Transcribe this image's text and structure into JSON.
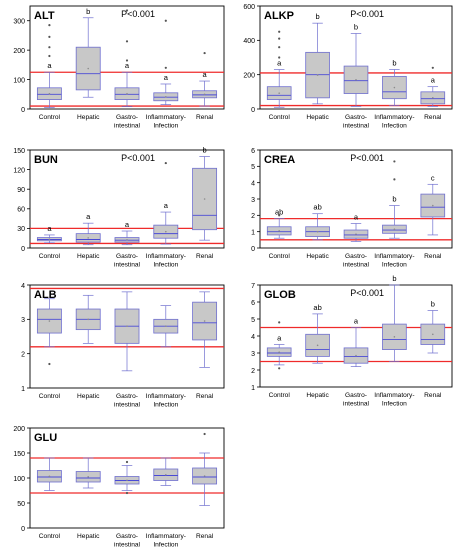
{
  "colors": {
    "box_fill": "#c8c8c8",
    "box_stroke": "#6f6fcf",
    "median": "#4a4ad6",
    "whisker": "#6f6fcf",
    "outlier": "#555555",
    "ref_line": "#ef2b2b",
    "frame": "#000000"
  },
  "categories": [
    "Control",
    "Hepatic",
    "Gastro-intestinal",
    "Inflammatory-Infection",
    "Renal"
  ],
  "category_lines": [
    [
      "Control"
    ],
    [
      "Hepatic"
    ],
    [
      "Gastro-",
      "intestinal"
    ],
    [
      "Inflammatory-",
      "Infection"
    ],
    [
      "Renal"
    ]
  ],
  "chart_data": [
    {
      "type": "box",
      "title": "ALT",
      "pvalue": "P<0.001",
      "ylim": [
        0,
        350
      ],
      "yticks": [
        "0",
        "100",
        "200",
        "300"
      ],
      "ytick_values": [
        0,
        100,
        200,
        300
      ],
      "ref_lines": [
        125,
        10
      ],
      "boxes": [
        {
          "min": 5,
          "q1": 32,
          "median": 50,
          "q3": 72,
          "max": 125,
          "outliers": [
            180,
            210,
            245,
            285
          ],
          "letter": "a"
        },
        {
          "min": 40,
          "q1": 65,
          "median": 120,
          "q3": 210,
          "max": 310,
          "outliers": [],
          "letter": "b"
        },
        {
          "min": 8,
          "q1": 32,
          "median": 50,
          "q3": 72,
          "max": 125,
          "outliers": [
            165,
            230,
            335
          ],
          "letter": "a"
        },
        {
          "min": 15,
          "q1": 28,
          "median": 40,
          "q3": 55,
          "max": 85,
          "outliers": [
            140,
            300
          ],
          "letter": "a"
        },
        {
          "min": 10,
          "q1": 38,
          "median": 48,
          "q3": 62,
          "max": 95,
          "outliers": [
            190
          ],
          "letter": "a"
        }
      ]
    },
    {
      "type": "box",
      "title": "ALKP",
      "pvalue": "P<0.001",
      "ylim": [
        0,
        600
      ],
      "yticks": [
        "0",
        "200",
        "400",
        "600"
      ],
      "ytick_values": [
        0,
        200,
        400,
        600
      ],
      "ref_lines": [
        210,
        20
      ],
      "boxes": [
        {
          "min": 10,
          "q1": 55,
          "median": 80,
          "q3": 130,
          "max": 230,
          "outliers": [
            300,
            360,
            410,
            450
          ],
          "letter": "a"
        },
        {
          "min": 30,
          "q1": 65,
          "median": 200,
          "q3": 330,
          "max": 500,
          "outliers": [],
          "letter": "b"
        },
        {
          "min": 15,
          "q1": 90,
          "median": 165,
          "q3": 250,
          "max": 440,
          "outliers": [],
          "letter": "b"
        },
        {
          "min": 20,
          "q1": 60,
          "median": 100,
          "q3": 190,
          "max": 230,
          "outliers": [],
          "letter": "b"
        },
        {
          "min": 15,
          "q1": 30,
          "median": 60,
          "q3": 100,
          "max": 130,
          "outliers": [
            240
          ],
          "letter": "a"
        }
      ]
    },
    {
      "type": "box",
      "title": "BUN",
      "pvalue": "P<0.001",
      "ylim": [
        0,
        150
      ],
      "yticks": [
        "0",
        "30",
        "60",
        "90",
        "120",
        "150"
      ],
      "ytick_values": [
        0,
        30,
        60,
        90,
        120,
        150
      ],
      "ref_lines": [
        30,
        7
      ],
      "boxes": [
        {
          "min": 8,
          "q1": 11,
          "median": 13,
          "q3": 16,
          "max": 20,
          "outliers": [],
          "letter": "a"
        },
        {
          "min": 5,
          "q1": 9,
          "median": 13,
          "q3": 22,
          "max": 38,
          "outliers": [],
          "letter": "a"
        },
        {
          "min": 5,
          "q1": 9,
          "median": 12,
          "q3": 16,
          "max": 26,
          "outliers": [],
          "letter": "a"
        },
        {
          "min": 6,
          "q1": 15,
          "median": 22,
          "q3": 35,
          "max": 55,
          "outliers": [
            130
          ],
          "letter": "a"
        },
        {
          "min": 12,
          "q1": 28,
          "median": 50,
          "q3": 122,
          "max": 140,
          "outliers": [],
          "letter": "b"
        }
      ]
    },
    {
      "type": "box",
      "title": "CREA",
      "pvalue": "P<0.001",
      "ylim": [
        0,
        6
      ],
      "yticks": [
        "0",
        "1",
        "2",
        "3",
        "4",
        "5",
        "6"
      ],
      "ytick_values": [
        0,
        1,
        2,
        3,
        4,
        5,
        6
      ],
      "ref_lines": [
        1.8,
        0.5
      ],
      "boxes": [
        {
          "min": 0.6,
          "q1": 0.8,
          "median": 1.0,
          "q3": 1.3,
          "max": 1.8,
          "outliers": [
            2.0
          ],
          "letter": "ab"
        },
        {
          "min": 0.5,
          "q1": 0.7,
          "median": 1.0,
          "q3": 1.3,
          "max": 2.1,
          "outliers": [],
          "letter": "ab"
        },
        {
          "min": 0.4,
          "q1": 0.6,
          "median": 0.8,
          "q3": 1.1,
          "max": 1.5,
          "outliers": [],
          "letter": "a"
        },
        {
          "min": 0.6,
          "q1": 0.9,
          "median": 1.1,
          "q3": 1.4,
          "max": 2.6,
          "outliers": [
            4.2,
            5.3
          ],
          "letter": "b"
        },
        {
          "min": 0.8,
          "q1": 1.9,
          "median": 2.5,
          "q3": 3.3,
          "max": 3.9,
          "outliers": [],
          "letter": "c"
        }
      ]
    },
    {
      "type": "box",
      "title": "ALB",
      "pvalue": "",
      "ylim": [
        1,
        4
      ],
      "yticks": [
        "1",
        "2",
        "3",
        "4"
      ],
      "ytick_values": [
        1,
        2,
        3,
        4
      ],
      "ref_lines": [
        3.9,
        2.2
      ],
      "boxes": [
        {
          "min": 2.2,
          "q1": 2.6,
          "median": 3.0,
          "q3": 3.3,
          "max": 3.6,
          "outliers": [
            1.7
          ],
          "letter": ""
        },
        {
          "min": 2.3,
          "q1": 2.7,
          "median": 3.0,
          "q3": 3.3,
          "max": 3.7,
          "outliers": [],
          "letter": ""
        },
        {
          "min": 1.5,
          "q1": 2.3,
          "median": 2.8,
          "q3": 3.3,
          "max": 3.8,
          "outliers": [],
          "letter": ""
        },
        {
          "min": 2.2,
          "q1": 2.6,
          "median": 2.8,
          "q3": 3.0,
          "max": 3.4,
          "outliers": [],
          "letter": ""
        },
        {
          "min": 1.6,
          "q1": 2.4,
          "median": 2.9,
          "q3": 3.5,
          "max": 3.8,
          "outliers": [],
          "letter": ""
        }
      ]
    },
    {
      "type": "box",
      "title": "GLOB",
      "pvalue": "P<0.001",
      "ylim": [
        1,
        7
      ],
      "yticks": [
        "1",
        "2",
        "3",
        "4",
        "5",
        "6",
        "7"
      ],
      "ytick_values": [
        1,
        2,
        3,
        4,
        5,
        6,
        7
      ],
      "ref_lines": [
        4.5,
        2.5
      ],
      "boxes": [
        {
          "min": 2.3,
          "q1": 2.8,
          "median": 3.0,
          "q3": 3.3,
          "max": 3.5,
          "outliers": [
            4.8,
            2.1
          ],
          "letter": "a"
        },
        {
          "min": 2.4,
          "q1": 2.8,
          "median": 3.2,
          "q3": 4.1,
          "max": 5.3,
          "outliers": [],
          "letter": "ab"
        },
        {
          "min": 2.2,
          "q1": 2.4,
          "median": 2.8,
          "q3": 3.3,
          "max": 4.5,
          "outliers": [],
          "letter": "a"
        },
        {
          "min": 2.5,
          "q1": 3.2,
          "median": 3.8,
          "q3": 4.7,
          "max": 7.0,
          "outliers": [],
          "letter": "b"
        },
        {
          "min": 3.0,
          "q1": 3.5,
          "median": 3.8,
          "q3": 4.7,
          "max": 5.5,
          "outliers": [],
          "letter": "b"
        }
      ]
    },
    {
      "type": "box",
      "title": "GLU",
      "pvalue": "",
      "ylim": [
        0,
        200
      ],
      "yticks": [
        "0",
        "50",
        "100",
        "150",
        "200"
      ],
      "ytick_values": [
        0,
        50,
        100,
        150,
        200
      ],
      "ref_lines": [
        140,
        70
      ],
      "boxes": [
        {
          "min": 75,
          "q1": 92,
          "median": 102,
          "q3": 115,
          "max": 140,
          "outliers": [],
          "letter": ""
        },
        {
          "min": 80,
          "q1": 92,
          "median": 100,
          "q3": 113,
          "max": 140,
          "outliers": [],
          "letter": ""
        },
        {
          "min": 75,
          "q1": 88,
          "median": 95,
          "q3": 103,
          "max": 125,
          "outliers": [
            132,
            70
          ],
          "letter": ""
        },
        {
          "min": 85,
          "q1": 95,
          "median": 105,
          "q3": 118,
          "max": 140,
          "outliers": [],
          "letter": ""
        },
        {
          "min": 45,
          "q1": 88,
          "median": 102,
          "q3": 120,
          "max": 150,
          "outliers": [
            188
          ],
          "letter": ""
        }
      ]
    }
  ]
}
